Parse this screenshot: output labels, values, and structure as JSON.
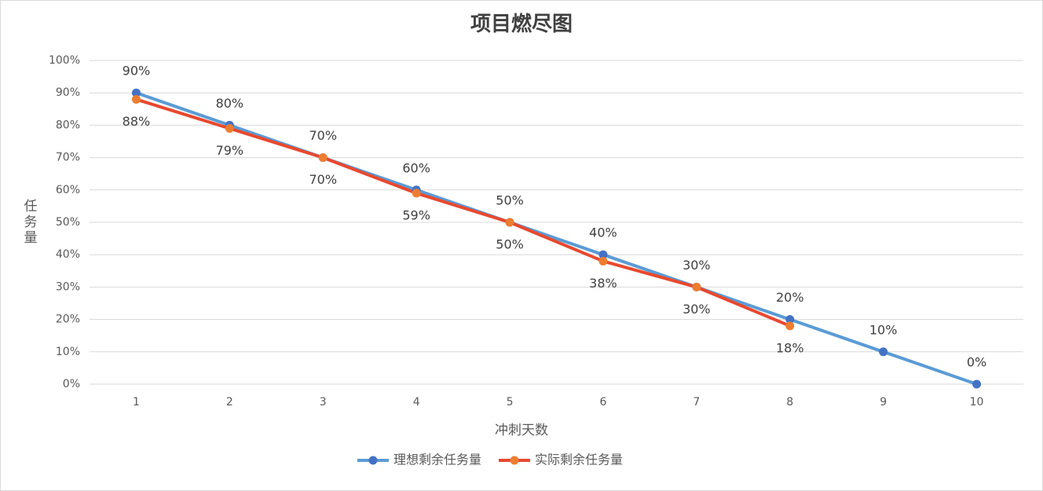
{
  "chart_data": {
    "type": "line",
    "title": "项目燃尽图",
    "x_label": "冲刺天数",
    "y_label": "任务量",
    "categories": [
      "1",
      "2",
      "3",
      "4",
      "5",
      "6",
      "7",
      "8",
      "9",
      "10"
    ],
    "series": [
      {
        "name": "理想剩余任务量",
        "color": "#4472c4",
        "line_color": "#5b9bd5",
        "values": [
          90,
          80,
          70,
          60,
          50,
          40,
          30,
          20,
          10,
          0
        ],
        "value_labels": [
          "90%",
          "80%",
          "70%",
          "60%",
          "50%",
          "40%",
          "30%",
          "20%",
          "10%",
          "0%"
        ]
      },
      {
        "name": "实际剩余任务量",
        "color": "#ed7d31",
        "line_color": "#e8492f",
        "values": [
          88,
          79,
          70,
          59,
          50,
          38,
          30,
          18,
          null,
          null
        ],
        "value_labels": [
          "88%",
          "79%",
          "70%",
          "59%",
          "50%",
          "38%",
          "30%",
          "18%",
          null,
          null
        ]
      }
    ],
    "ylim": [
      0,
      100
    ],
    "yticks": [
      {
        "value": 0,
        "label": "0%"
      },
      {
        "value": 10,
        "label": "10%"
      },
      {
        "value": 20,
        "label": "20%"
      },
      {
        "value": 30,
        "label": "30%"
      },
      {
        "value": 40,
        "label": "40%"
      },
      {
        "value": 50,
        "label": "50%"
      },
      {
        "value": 60,
        "label": "60%"
      },
      {
        "value": 70,
        "label": "70%"
      },
      {
        "value": 80,
        "label": "80%"
      },
      {
        "value": 90,
        "label": "90%"
      },
      {
        "value": 100,
        "label": "100%"
      }
    ],
    "grid": true,
    "legend": "bottom"
  }
}
